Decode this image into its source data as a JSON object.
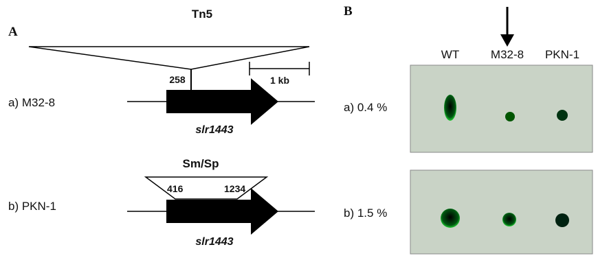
{
  "panel_a": {
    "label": "A",
    "transposon": "Tn5",
    "insertion_site": "258",
    "scale": "1 kb",
    "strains": [
      {
        "label": "a) M32-8",
        "gene": "slr1443"
      },
      {
        "label": "b) PKN-1",
        "gene": "slr1443"
      }
    ],
    "cassette": "Sm/Sp",
    "cassette_sites": [
      "416",
      "1234"
    ]
  },
  "panel_b": {
    "label": "B",
    "columns": [
      "WT",
      "M32-8",
      "PKN-1"
    ],
    "rows": [
      "a) 0.4 %",
      "b) 1.5 %"
    ]
  }
}
